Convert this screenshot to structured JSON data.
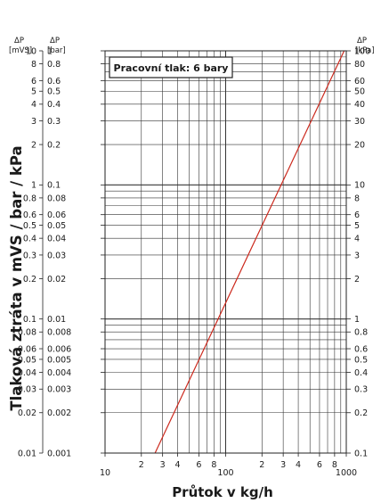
{
  "chart_data": {
    "type": "line",
    "x_scale": "log",
    "y_scale": "log",
    "xlim": [
      10,
      1000
    ],
    "ylim_bar": [
      0.001,
      1
    ],
    "xlabel": "Průtok v kg/h",
    "ylabel": "Tlaková ztráta v mVS / bar / kPa",
    "annotation": "Pracovní tlak: 6 bary",
    "grid": true,
    "header_labels": {
      "left_mvs": [
        "ΔP",
        "[mVS]"
      ],
      "left_bar": [
        "ΔP",
        "[bar]"
      ],
      "right_kpa": [
        "ΔP",
        "[kPa]"
      ]
    },
    "x_ticks": [
      {
        "value": 10,
        "label": "10"
      },
      {
        "value": 20,
        "label": "2"
      },
      {
        "value": 30,
        "label": "3"
      },
      {
        "value": 40,
        "label": "4"
      },
      {
        "value": 60,
        "label": "6"
      },
      {
        "value": 80,
        "label": "8"
      },
      {
        "value": 100,
        "label": "100"
      },
      {
        "value": 200,
        "label": "2"
      },
      {
        "value": 300,
        "label": "3"
      },
      {
        "value": 400,
        "label": "4"
      },
      {
        "value": 600,
        "label": "6"
      },
      {
        "value": 800,
        "label": "8"
      },
      {
        "value": 1000,
        "label": "1000"
      }
    ],
    "y_ticks": [
      {
        "bar": 1,
        "mvs": "10",
        "barLabel": "1",
        "kpa": "100"
      },
      {
        "bar": 0.8,
        "mvs": "8",
        "barLabel": "0.8",
        "kpa": "80"
      },
      {
        "bar": 0.6,
        "mvs": "6",
        "barLabel": "0.6",
        "kpa": "60"
      },
      {
        "bar": 0.5,
        "mvs": "5",
        "barLabel": "0.5",
        "kpa": "50"
      },
      {
        "bar": 0.4,
        "mvs": "4",
        "barLabel": "0.4",
        "kpa": "40"
      },
      {
        "bar": 0.3,
        "mvs": "3",
        "barLabel": "0.3",
        "kpa": "30"
      },
      {
        "bar": 0.2,
        "mvs": "2",
        "barLabel": "0.2",
        "kpa": "20"
      },
      {
        "bar": 0.1,
        "mvs": "1",
        "barLabel": "0.1",
        "kpa": "10"
      },
      {
        "bar": 0.08,
        "mvs": "0.8",
        "barLabel": "0.08",
        "kpa": "8"
      },
      {
        "bar": 0.06,
        "mvs": "0.6",
        "barLabel": "0.06",
        "kpa": "6"
      },
      {
        "bar": 0.05,
        "mvs": "0.5",
        "barLabel": "0.05",
        "kpa": "5"
      },
      {
        "bar": 0.04,
        "mvs": "0.4",
        "barLabel": "0.04",
        "kpa": "4"
      },
      {
        "bar": 0.03,
        "mvs": "0.3",
        "barLabel": "0.03",
        "kpa": "3"
      },
      {
        "bar": 0.02,
        "mvs": "0.2",
        "barLabel": "0.02",
        "kpa": "2"
      },
      {
        "bar": 0.01,
        "mvs": "0.1",
        "barLabel": "0.01",
        "kpa": "1"
      },
      {
        "bar": 0.008,
        "mvs": "0.08",
        "barLabel": "0.008",
        "kpa": "0.8"
      },
      {
        "bar": 0.006,
        "mvs": "0.06",
        "barLabel": "0.006",
        "kpa": "0.6"
      },
      {
        "bar": 0.005,
        "mvs": "0.05",
        "barLabel": "0.005",
        "kpa": "0.5"
      },
      {
        "bar": 0.004,
        "mvs": "0.04",
        "barLabel": "0.004",
        "kpa": "0.4"
      },
      {
        "bar": 0.003,
        "mvs": "0.03",
        "barLabel": "0.003",
        "kpa": "0.3"
      },
      {
        "bar": 0.002,
        "mvs": "0.02",
        "barLabel": "0.002",
        "kpa": "0.2"
      },
      {
        "bar": 0.001,
        "mvs": "0.01",
        "barLabel": "0.001",
        "kpa": "0.1"
      }
    ],
    "series": [
      {
        "color": "#cc2a1e",
        "points": [
          {
            "x": 26,
            "y": 0.001
          },
          {
            "x": 960,
            "y": 1
          }
        ]
      }
    ]
  }
}
